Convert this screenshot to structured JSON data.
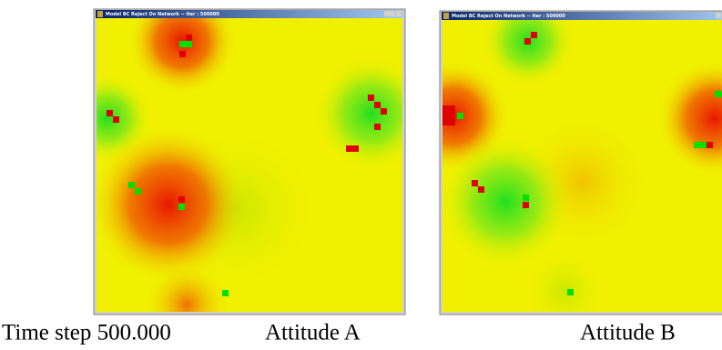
{
  "windows": [
    {
      "title": "Model BC Reject On Network -- iter : 500000"
    },
    {
      "title": "Model BC Reject On Network -- iter : 500000"
    }
  ],
  "captions": {
    "time_step": "Time step 500.000",
    "attitude_a": "Attitude A",
    "attitude_b": "Attitude B"
  }
}
